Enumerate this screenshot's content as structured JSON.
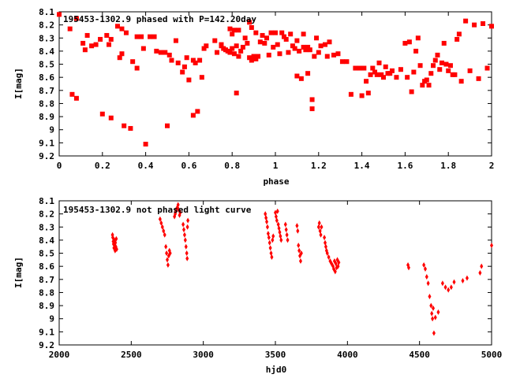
{
  "chart_data": [
    {
      "type": "scatter",
      "title": "195453-1302.9 phased with P=142.20day",
      "xlabel": "phase",
      "ylabel": "I[mag]",
      "xlim": [
        0,
        2
      ],
      "ylim": [
        8.1,
        9.2
      ],
      "y_inverted": true,
      "xticks": [
        "0",
        "0.2",
        "0.4",
        "0.6",
        "0.8",
        "1",
        "1.2",
        "1.4",
        "1.6",
        "1.8",
        "2"
      ],
      "xtick_values": [
        0,
        0.2,
        0.4,
        0.6,
        0.8,
        1.0,
        1.2,
        1.4,
        1.6,
        1.8,
        2.0
      ],
      "yticks": [
        "8.1",
        "8.2",
        "8.3",
        "8.4",
        "8.5",
        "8.6",
        "8.7",
        "8.8",
        "8.9",
        "9",
        "9.1",
        "9.2"
      ],
      "ytick_values": [
        8.1,
        8.2,
        8.3,
        8.4,
        8.5,
        8.6,
        8.7,
        8.8,
        8.9,
        9.0,
        9.1,
        9.2
      ],
      "marker": "filled-square",
      "color": "#ff0000",
      "points": [
        [
          0.0,
          8.12
        ],
        [
          0.05,
          8.23
        ],
        [
          0.06,
          8.73
        ],
        [
          0.08,
          8.76
        ],
        [
          0.08,
          8.15
        ],
        [
          0.11,
          8.34
        ],
        [
          0.12,
          8.39
        ],
        [
          0.13,
          8.28
        ],
        [
          0.15,
          8.36
        ],
        [
          0.17,
          8.35
        ],
        [
          0.19,
          8.31
        ],
        [
          0.2,
          8.88
        ],
        [
          0.22,
          8.28
        ],
        [
          0.23,
          8.35
        ],
        [
          0.24,
          8.31
        ],
        [
          0.24,
          8.91
        ],
        [
          0.27,
          8.21
        ],
        [
          0.28,
          8.45
        ],
        [
          0.29,
          8.42
        ],
        [
          0.29,
          8.23
        ],
        [
          0.3,
          8.97
        ],
        [
          0.31,
          8.26
        ],
        [
          0.33,
          8.99
        ],
        [
          0.34,
          8.48
        ],
        [
          0.36,
          8.53
        ],
        [
          0.36,
          8.29
        ],
        [
          0.38,
          8.29
        ],
        [
          0.39,
          8.38
        ],
        [
          0.4,
          9.11
        ],
        [
          0.42,
          8.29
        ],
        [
          0.44,
          8.29
        ],
        [
          0.45,
          8.4
        ],
        [
          0.47,
          8.41
        ],
        [
          0.49,
          8.41
        ],
        [
          0.5,
          8.97
        ],
        [
          0.51,
          8.43
        ],
        [
          0.52,
          8.47
        ],
        [
          0.54,
          8.32
        ],
        [
          0.55,
          8.49
        ],
        [
          0.57,
          8.56
        ],
        [
          0.58,
          8.52
        ],
        [
          0.59,
          8.45
        ],
        [
          0.6,
          8.62
        ],
        [
          0.62,
          8.47
        ],
        [
          0.62,
          8.89
        ],
        [
          0.63,
          8.49
        ],
        [
          0.64,
          8.86
        ],
        [
          0.65,
          8.47
        ],
        [
          0.66,
          8.6
        ],
        [
          0.67,
          8.38
        ],
        [
          0.68,
          8.36
        ],
        [
          0.72,
          8.32
        ],
        [
          0.73,
          8.41
        ],
        [
          0.75,
          8.35
        ],
        [
          0.75,
          8.36
        ],
        [
          0.76,
          8.38
        ],
        [
          0.77,
          8.39
        ],
        [
          0.78,
          8.4
        ],
        [
          0.79,
          8.41
        ],
        [
          0.79,
          8.23
        ],
        [
          0.8,
          8.38
        ],
        [
          0.8,
          8.27
        ],
        [
          0.81,
          8.24
        ],
        [
          0.81,
          8.42
        ],
        [
          0.82,
          8.36
        ],
        [
          0.82,
          8.72
        ],
        [
          0.83,
          8.24
        ],
        [
          0.83,
          8.44
        ],
        [
          0.84,
          8.4
        ],
        [
          0.85,
          8.37
        ],
        [
          0.86,
          8.3
        ],
        [
          0.87,
          8.34
        ],
        [
          0.88,
          8.18
        ],
        [
          0.88,
          8.45
        ],
        [
          0.89,
          8.47
        ],
        [
          0.89,
          8.22
        ],
        [
          0.9,
          8.44
        ],
        [
          0.91,
          8.26
        ],
        [
          0.91,
          8.46
        ],
        [
          0.92,
          8.44
        ],
        [
          0.93,
          8.33
        ],
        [
          0.94,
          8.28
        ],
        [
          0.95,
          8.34
        ],
        [
          0.96,
          8.3
        ],
        [
          0.97,
          8.43
        ],
        [
          0.98,
          8.26
        ],
        [
          0.99,
          8.37
        ],
        [
          1.0,
          8.26
        ],
        [
          1.01,
          8.35
        ],
        [
          1.02,
          8.42
        ],
        [
          1.03,
          8.26
        ],
        [
          1.04,
          8.29
        ],
        [
          1.05,
          8.31
        ],
        [
          1.06,
          8.41
        ],
        [
          1.07,
          8.27
        ],
        [
          1.08,
          8.36
        ],
        [
          1.09,
          8.38
        ],
        [
          1.1,
          8.32
        ],
        [
          1.1,
          8.59
        ],
        [
          1.11,
          8.4
        ],
        [
          1.12,
          8.61
        ],
        [
          1.13,
          8.37
        ],
        [
          1.13,
          8.27
        ],
        [
          1.14,
          8.39
        ],
        [
          1.15,
          8.57
        ],
        [
          1.15,
          8.37
        ],
        [
          1.16,
          8.39
        ],
        [
          1.17,
          8.77
        ],
        [
          1.17,
          8.84
        ],
        [
          1.18,
          8.44
        ],
        [
          1.19,
          8.3
        ],
        [
          1.2,
          8.41
        ],
        [
          1.21,
          8.36
        ],
        [
          1.23,
          8.35
        ],
        [
          1.24,
          8.44
        ],
        [
          1.25,
          8.33
        ],
        [
          1.27,
          8.43
        ],
        [
          1.29,
          8.42
        ],
        [
          1.31,
          8.48
        ],
        [
          1.33,
          8.48
        ],
        [
          1.35,
          8.73
        ],
        [
          1.37,
          8.53
        ],
        [
          1.39,
          8.53
        ],
        [
          1.4,
          8.74
        ],
        [
          1.41,
          8.53
        ],
        [
          1.42,
          8.63
        ],
        [
          1.43,
          8.72
        ],
        [
          1.44,
          8.58
        ],
        [
          1.45,
          8.53
        ],
        [
          1.46,
          8.56
        ],
        [
          1.47,
          8.58
        ],
        [
          1.48,
          8.49
        ],
        [
          1.49,
          8.58
        ],
        [
          1.5,
          8.6
        ],
        [
          1.51,
          8.52
        ],
        [
          1.52,
          8.57
        ],
        [
          1.53,
          8.57
        ],
        [
          1.54,
          8.55
        ],
        [
          1.56,
          8.6
        ],
        [
          1.58,
          8.54
        ],
        [
          1.6,
          8.34
        ],
        [
          1.61,
          8.6
        ],
        [
          1.62,
          8.33
        ],
        [
          1.63,
          8.71
        ],
        [
          1.64,
          8.56
        ],
        [
          1.65,
          8.4
        ],
        [
          1.66,
          8.3
        ],
        [
          1.67,
          8.51
        ],
        [
          1.68,
          8.66
        ],
        [
          1.69,
          8.63
        ],
        [
          1.7,
          8.62
        ],
        [
          1.71,
          8.66
        ],
        [
          1.72,
          8.57
        ],
        [
          1.73,
          8.51
        ],
        [
          1.74,
          8.47
        ],
        [
          1.75,
          8.43
        ],
        [
          1.76,
          8.54
        ],
        [
          1.77,
          8.49
        ],
        [
          1.78,
          8.34
        ],
        [
          1.79,
          8.5
        ],
        [
          1.8,
          8.55
        ],
        [
          1.81,
          8.51
        ],
        [
          1.82,
          8.58
        ],
        [
          1.83,
          8.58
        ],
        [
          1.84,
          8.31
        ],
        [
          1.85,
          8.27
        ],
        [
          1.86,
          8.63
        ],
        [
          1.88,
          8.17
        ],
        [
          1.9,
          8.55
        ],
        [
          1.92,
          8.2
        ],
        [
          1.94,
          8.61
        ],
        [
          1.96,
          8.19
        ],
        [
          1.98,
          8.53
        ],
        [
          2.0,
          8.21
        ]
      ]
    },
    {
      "type": "scatter",
      "title": "195453-1302.9 not phased light curve",
      "xlabel": "hjd0",
      "ylabel": "I[mag]",
      "xlim": [
        2000,
        5000
      ],
      "ylim": [
        8.1,
        9.2
      ],
      "y_inverted": true,
      "xticks": [
        "2000",
        "2500",
        "3000",
        "3500",
        "4000",
        "4500",
        "5000"
      ],
      "xtick_values": [
        2000,
        2500,
        3000,
        3500,
        4000,
        4500,
        5000
      ],
      "yticks": [
        "8.1",
        "8.2",
        "8.3",
        "8.4",
        "8.5",
        "8.6",
        "8.7",
        "8.8",
        "8.9",
        "9",
        "9.1",
        "9.2"
      ],
      "ytick_values": [
        8.1,
        8.2,
        8.3,
        8.4,
        8.5,
        8.6,
        8.7,
        8.8,
        8.9,
        9.0,
        9.1,
        9.2
      ],
      "marker": "diamond",
      "color": "#ff0000",
      "points": [
        [
          2370,
          8.36
        ],
        [
          2372,
          8.38
        ],
        [
          2375,
          8.41
        ],
        [
          2377,
          8.43
        ],
        [
          2380,
          8.46
        ],
        [
          2383,
          8.4
        ],
        [
          2386,
          8.44
        ],
        [
          2388,
          8.48
        ],
        [
          2390,
          8.42
        ],
        [
          2393,
          8.45
        ],
        [
          2396,
          8.39
        ],
        [
          2399,
          8.47
        ],
        [
          2700,
          8.24
        ],
        [
          2708,
          8.27
        ],
        [
          2716,
          8.3
        ],
        [
          2724,
          8.33
        ],
        [
          2732,
          8.36
        ],
        [
          2740,
          8.45
        ],
        [
          2745,
          8.5
        ],
        [
          2750,
          8.55
        ],
        [
          2755,
          8.59
        ],
        [
          2760,
          8.52
        ],
        [
          2765,
          8.48
        ],
        [
          2770,
          8.5
        ],
        [
          2800,
          8.22
        ],
        [
          2805,
          8.2
        ],
        [
          2810,
          8.18
        ],
        [
          2815,
          8.16
        ],
        [
          2820,
          8.15
        ],
        [
          2825,
          8.13
        ],
        [
          2830,
          8.17
        ],
        [
          2835,
          8.21
        ],
        [
          2840,
          8.19
        ],
        [
          2860,
          8.28
        ],
        [
          2865,
          8.32
        ],
        [
          2870,
          8.36
        ],
        [
          2875,
          8.4
        ],
        [
          2880,
          8.45
        ],
        [
          2885,
          8.5
        ],
        [
          2888,
          8.54
        ],
        [
          2890,
          8.3
        ],
        [
          2893,
          8.25
        ],
        [
          3430,
          8.2
        ],
        [
          3435,
          8.23
        ],
        [
          3440,
          8.26
        ],
        [
          3445,
          8.3
        ],
        [
          3450,
          8.35
        ],
        [
          3455,
          8.38
        ],
        [
          3460,
          8.42
        ],
        [
          3465,
          8.46
        ],
        [
          3470,
          8.5
        ],
        [
          3475,
          8.53
        ],
        [
          3480,
          8.4
        ],
        [
          3485,
          8.37
        ],
        [
          3500,
          8.19
        ],
        [
          3505,
          8.22
        ],
        [
          3510,
          8.25
        ],
        [
          3515,
          8.18
        ],
        [
          3520,
          8.28
        ],
        [
          3525,
          8.31
        ],
        [
          3530,
          8.34
        ],
        [
          3535,
          8.37
        ],
        [
          3540,
          8.4
        ],
        [
          3570,
          8.28
        ],
        [
          3575,
          8.32
        ],
        [
          3580,
          8.36
        ],
        [
          3585,
          8.4
        ],
        [
          3650,
          8.29
        ],
        [
          3655,
          8.33
        ],
        [
          3660,
          8.44
        ],
        [
          3665,
          8.48
        ],
        [
          3670,
          8.52
        ],
        [
          3675,
          8.56
        ],
        [
          3680,
          8.5
        ],
        [
          3800,
          8.3
        ],
        [
          3805,
          8.27
        ],
        [
          3810,
          8.33
        ],
        [
          3815,
          8.36
        ],
        [
          3820,
          8.3
        ],
        [
          3840,
          8.38
        ],
        [
          3845,
          8.42
        ],
        [
          3850,
          8.45
        ],
        [
          3855,
          8.48
        ],
        [
          3860,
          8.5
        ],
        [
          3870,
          8.53
        ],
        [
          3880,
          8.56
        ],
        [
          3890,
          8.58
        ],
        [
          3900,
          8.6
        ],
        [
          3905,
          8.62
        ],
        [
          3910,
          8.56
        ],
        [
          3915,
          8.64
        ],
        [
          3920,
          8.58
        ],
        [
          3925,
          8.61
        ],
        [
          3930,
          8.55
        ],
        [
          3935,
          8.6
        ],
        [
          3940,
          8.57
        ],
        [
          4420,
          8.59
        ],
        [
          4425,
          8.61
        ],
        [
          4530,
          8.59
        ],
        [
          4540,
          8.62
        ],
        [
          4550,
          8.68
        ],
        [
          4560,
          8.73
        ],
        [
          4570,
          8.83
        ],
        [
          4580,
          8.9
        ],
        [
          4585,
          8.96
        ],
        [
          4590,
          9.0
        ],
        [
          4595,
          8.92
        ],
        [
          4600,
          9.11
        ],
        [
          4610,
          8.99
        ],
        [
          4630,
          8.95
        ],
        [
          4660,
          8.73
        ],
        [
          4680,
          8.76
        ],
        [
          4700,
          8.78
        ],
        [
          4720,
          8.76
        ],
        [
          4740,
          8.72
        ],
        [
          4800,
          8.71
        ],
        [
          4830,
          8.69
        ],
        [
          4920,
          8.65
        ],
        [
          4930,
          8.6
        ],
        [
          5000,
          8.44
        ]
      ]
    }
  ]
}
